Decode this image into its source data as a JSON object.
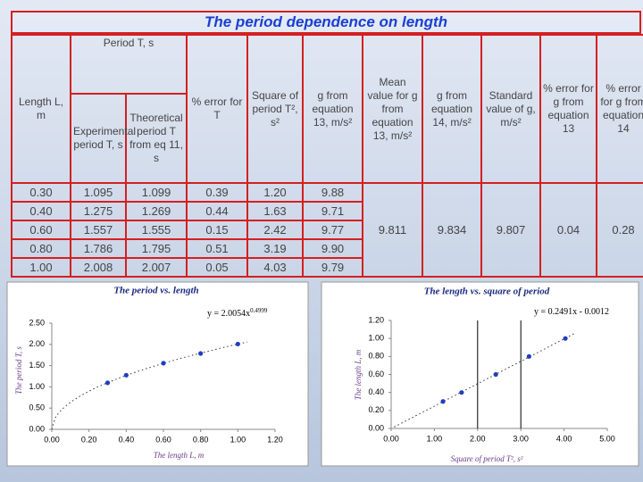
{
  "title": "The period dependence on length",
  "table": {
    "header": [
      "Length L, m",
      "Period T, s",
      "% error for T",
      "Square of period T², s²",
      "g from equation 13, m/s²",
      "Mean value for g from equation 13, m/s²",
      "g from equation 14, m/s²",
      "Standard value of g, m/s²",
      "% error for g from equation 13",
      "% error for g from equation 14"
    ],
    "subheader": [
      "Experimental period T, s",
      "Theoretical period T from eq 11, s"
    ],
    "rows": [
      [
        "0.30",
        "1.095",
        "1.099",
        "0.39",
        "1.20",
        "9.88"
      ],
      [
        "0.40",
        "1.275",
        "1.269",
        "0.44",
        "1.63",
        "9.71"
      ],
      [
        "0.60",
        "1.557",
        "1.555",
        "0.15",
        "2.42",
        "9.77"
      ],
      [
        "0.80",
        "1.786",
        "1.795",
        "0.51",
        "3.19",
        "9.90"
      ],
      [
        "1.00",
        "2.008",
        "2.007",
        "0.05",
        "4.03",
        "9.79"
      ]
    ],
    "merged": [
      "9.811",
      "9.834",
      "9.807",
      "0.04",
      "0.28"
    ]
  },
  "chart_data": [
    {
      "type": "scatter",
      "title": "The period vs. length",
      "xlabel": "The length L, m",
      "ylabel": "The period T, s",
      "x": [
        0.3,
        0.4,
        0.6,
        0.8,
        1.0
      ],
      "values": [
        1.095,
        1.275,
        1.557,
        1.786,
        2.008
      ],
      "color": "#1f3fbf",
      "trendline": {
        "type": "power",
        "coef": 2.0054,
        "exp": 0.4999
      },
      "annotation": {
        "text": "y = 2.0054x",
        "sup": "0.4999"
      },
      "xlim": [
        0,
        1.2
      ],
      "xticks": [
        {
          "value": 0,
          "label": "0.00"
        },
        {
          "value": 0.2,
          "label": "0.20"
        },
        {
          "value": 0.4,
          "label": "0.40"
        },
        {
          "value": 0.6,
          "label": "0.60"
        },
        {
          "value": 0.8,
          "label": "0.80"
        },
        {
          "value": 1.0,
          "label": "1.00"
        },
        {
          "value": 1.2,
          "label": "1.20"
        }
      ],
      "ylim": [
        0,
        2.5
      ],
      "yticks": [
        {
          "value": 0,
          "label": "0.00"
        },
        {
          "value": 0.5,
          "label": "0.50"
        },
        {
          "value": 1.0,
          "label": "1.00"
        },
        {
          "value": 1.5,
          "label": "1.50"
        },
        {
          "value": 2.0,
          "label": "2.00"
        },
        {
          "value": 2.5,
          "label": "2.50"
        }
      ]
    },
    {
      "type": "scatter",
      "title": "The length vs. square of period",
      "xlabel": "Square of period T², s²",
      "ylabel": "The length L, m",
      "x": [
        1.2,
        1.63,
        2.42,
        3.19,
        4.03
      ],
      "values": [
        0.3,
        0.4,
        0.6,
        0.8,
        1.0
      ],
      "color": "#1f3fbf",
      "trendline": {
        "type": "linear",
        "slope": 0.2491,
        "intercept": -0.0012
      },
      "annotation": {
        "text": "y = 0.2491x - 0.0012"
      },
      "reference_lines_x": [
        2,
        3
      ],
      "xlim": [
        0,
        5
      ],
      "xticks": [
        {
          "value": 0,
          "label": "0.00"
        },
        {
          "value": 1,
          "label": "1.00"
        },
        {
          "value": 2,
          "label": "2.00"
        },
        {
          "value": 3,
          "label": "3.00"
        },
        {
          "value": 4,
          "label": "4.00"
        },
        {
          "value": 5,
          "label": "5.00"
        }
      ],
      "ylim": [
        0,
        1.2
      ],
      "yticks": [
        {
          "value": 0,
          "label": "0.00"
        },
        {
          "value": 0.2,
          "label": "0.20"
        },
        {
          "value": 0.4,
          "label": "0.40"
        },
        {
          "value": 0.6,
          "label": "0.60"
        },
        {
          "value": 0.8,
          "label": "0.80"
        },
        {
          "value": 1.0,
          "label": "1.00"
        },
        {
          "value": 1.2,
          "label": "1.20"
        }
      ]
    }
  ]
}
